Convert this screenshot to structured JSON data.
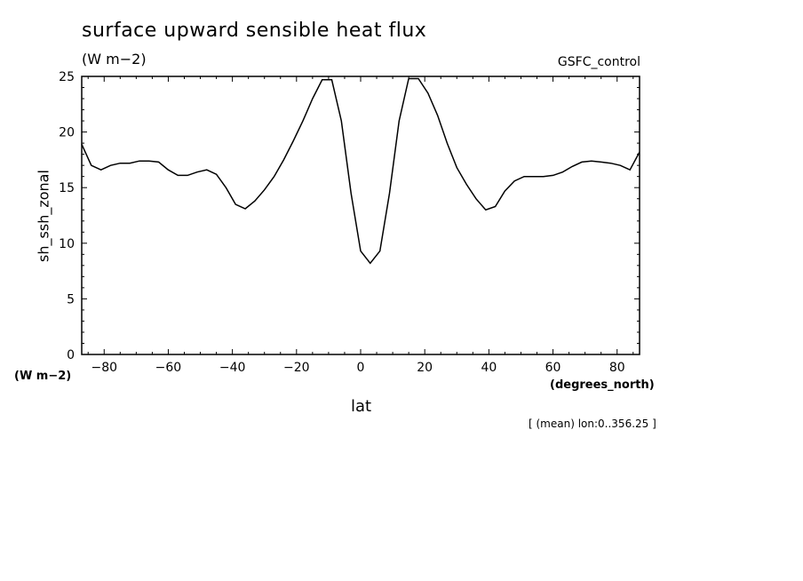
{
  "header": {
    "title": "surface upward sensible heat flux",
    "units": "(W m−2)",
    "run_label": "GSFC_control"
  },
  "axes": {
    "ylabel": "sh_ssh_zonal",
    "yunits": "(W m−2)",
    "xlabel": "lat",
    "xunits": "(degrees_north)"
  },
  "footnote": "[ (mean) lon:0..356.25 ]",
  "chart_data": {
    "type": "line",
    "title": "surface upward sensible heat flux",
    "xlabel": "lat",
    "ylabel": "sh_ssh_zonal",
    "xlim": [
      -87,
      87
    ],
    "ylim": [
      0,
      25
    ],
    "xticks": [
      -80,
      -60,
      -40,
      -20,
      0,
      20,
      40,
      60,
      80
    ],
    "yticks": [
      0,
      5,
      10,
      15,
      20,
      25
    ],
    "tick_labels_x": [
      "−80",
      "−60",
      "−40",
      "−20",
      "0",
      "20",
      "40",
      "60",
      "80"
    ],
    "tick_labels_y": [
      "0",
      "5",
      "10",
      "15",
      "20",
      "25"
    ],
    "grid": false,
    "line_color": "#000000",
    "series": [
      {
        "x": [
          -87.2,
          -84,
          -81,
          -78,
          -75,
          -72,
          -69,
          -66,
          -63,
          -60,
          -57,
          -54,
          -51,
          -48,
          -45,
          -42,
          -39,
          -36,
          -33,
          -30,
          -27,
          -24,
          -21,
          -18,
          -15,
          -12,
          -9,
          -6,
          -3,
          0,
          3,
          6,
          9,
          12,
          15,
          18,
          21,
          24,
          27,
          30,
          33,
          36,
          39,
          42,
          45,
          48,
          51,
          54,
          57,
          60,
          63,
          66,
          69,
          72,
          75,
          78,
          81,
          84,
          87.2
        ],
        "y": [
          18.9,
          17.0,
          16.6,
          17.0,
          17.2,
          17.2,
          17.4,
          17.4,
          17.3,
          16.6,
          16.1,
          16.1,
          16.4,
          16.6,
          16.2,
          15.0,
          13.5,
          13.1,
          13.8,
          14.8,
          16.0,
          17.5,
          19.2,
          21.0,
          23.0,
          24.7,
          24.7,
          21.0,
          14.5,
          9.3,
          8.2,
          9.3,
          14.5,
          21.0,
          24.8,
          24.8,
          23.5,
          21.5,
          19.0,
          16.8,
          15.3,
          14.0,
          13.0,
          13.3,
          14.7,
          15.6,
          16.0,
          16.0,
          16.0,
          16.1,
          16.4,
          16.9,
          17.3,
          17.4,
          17.3,
          17.2,
          17.0,
          16.6,
          18.2
        ]
      }
    ]
  }
}
